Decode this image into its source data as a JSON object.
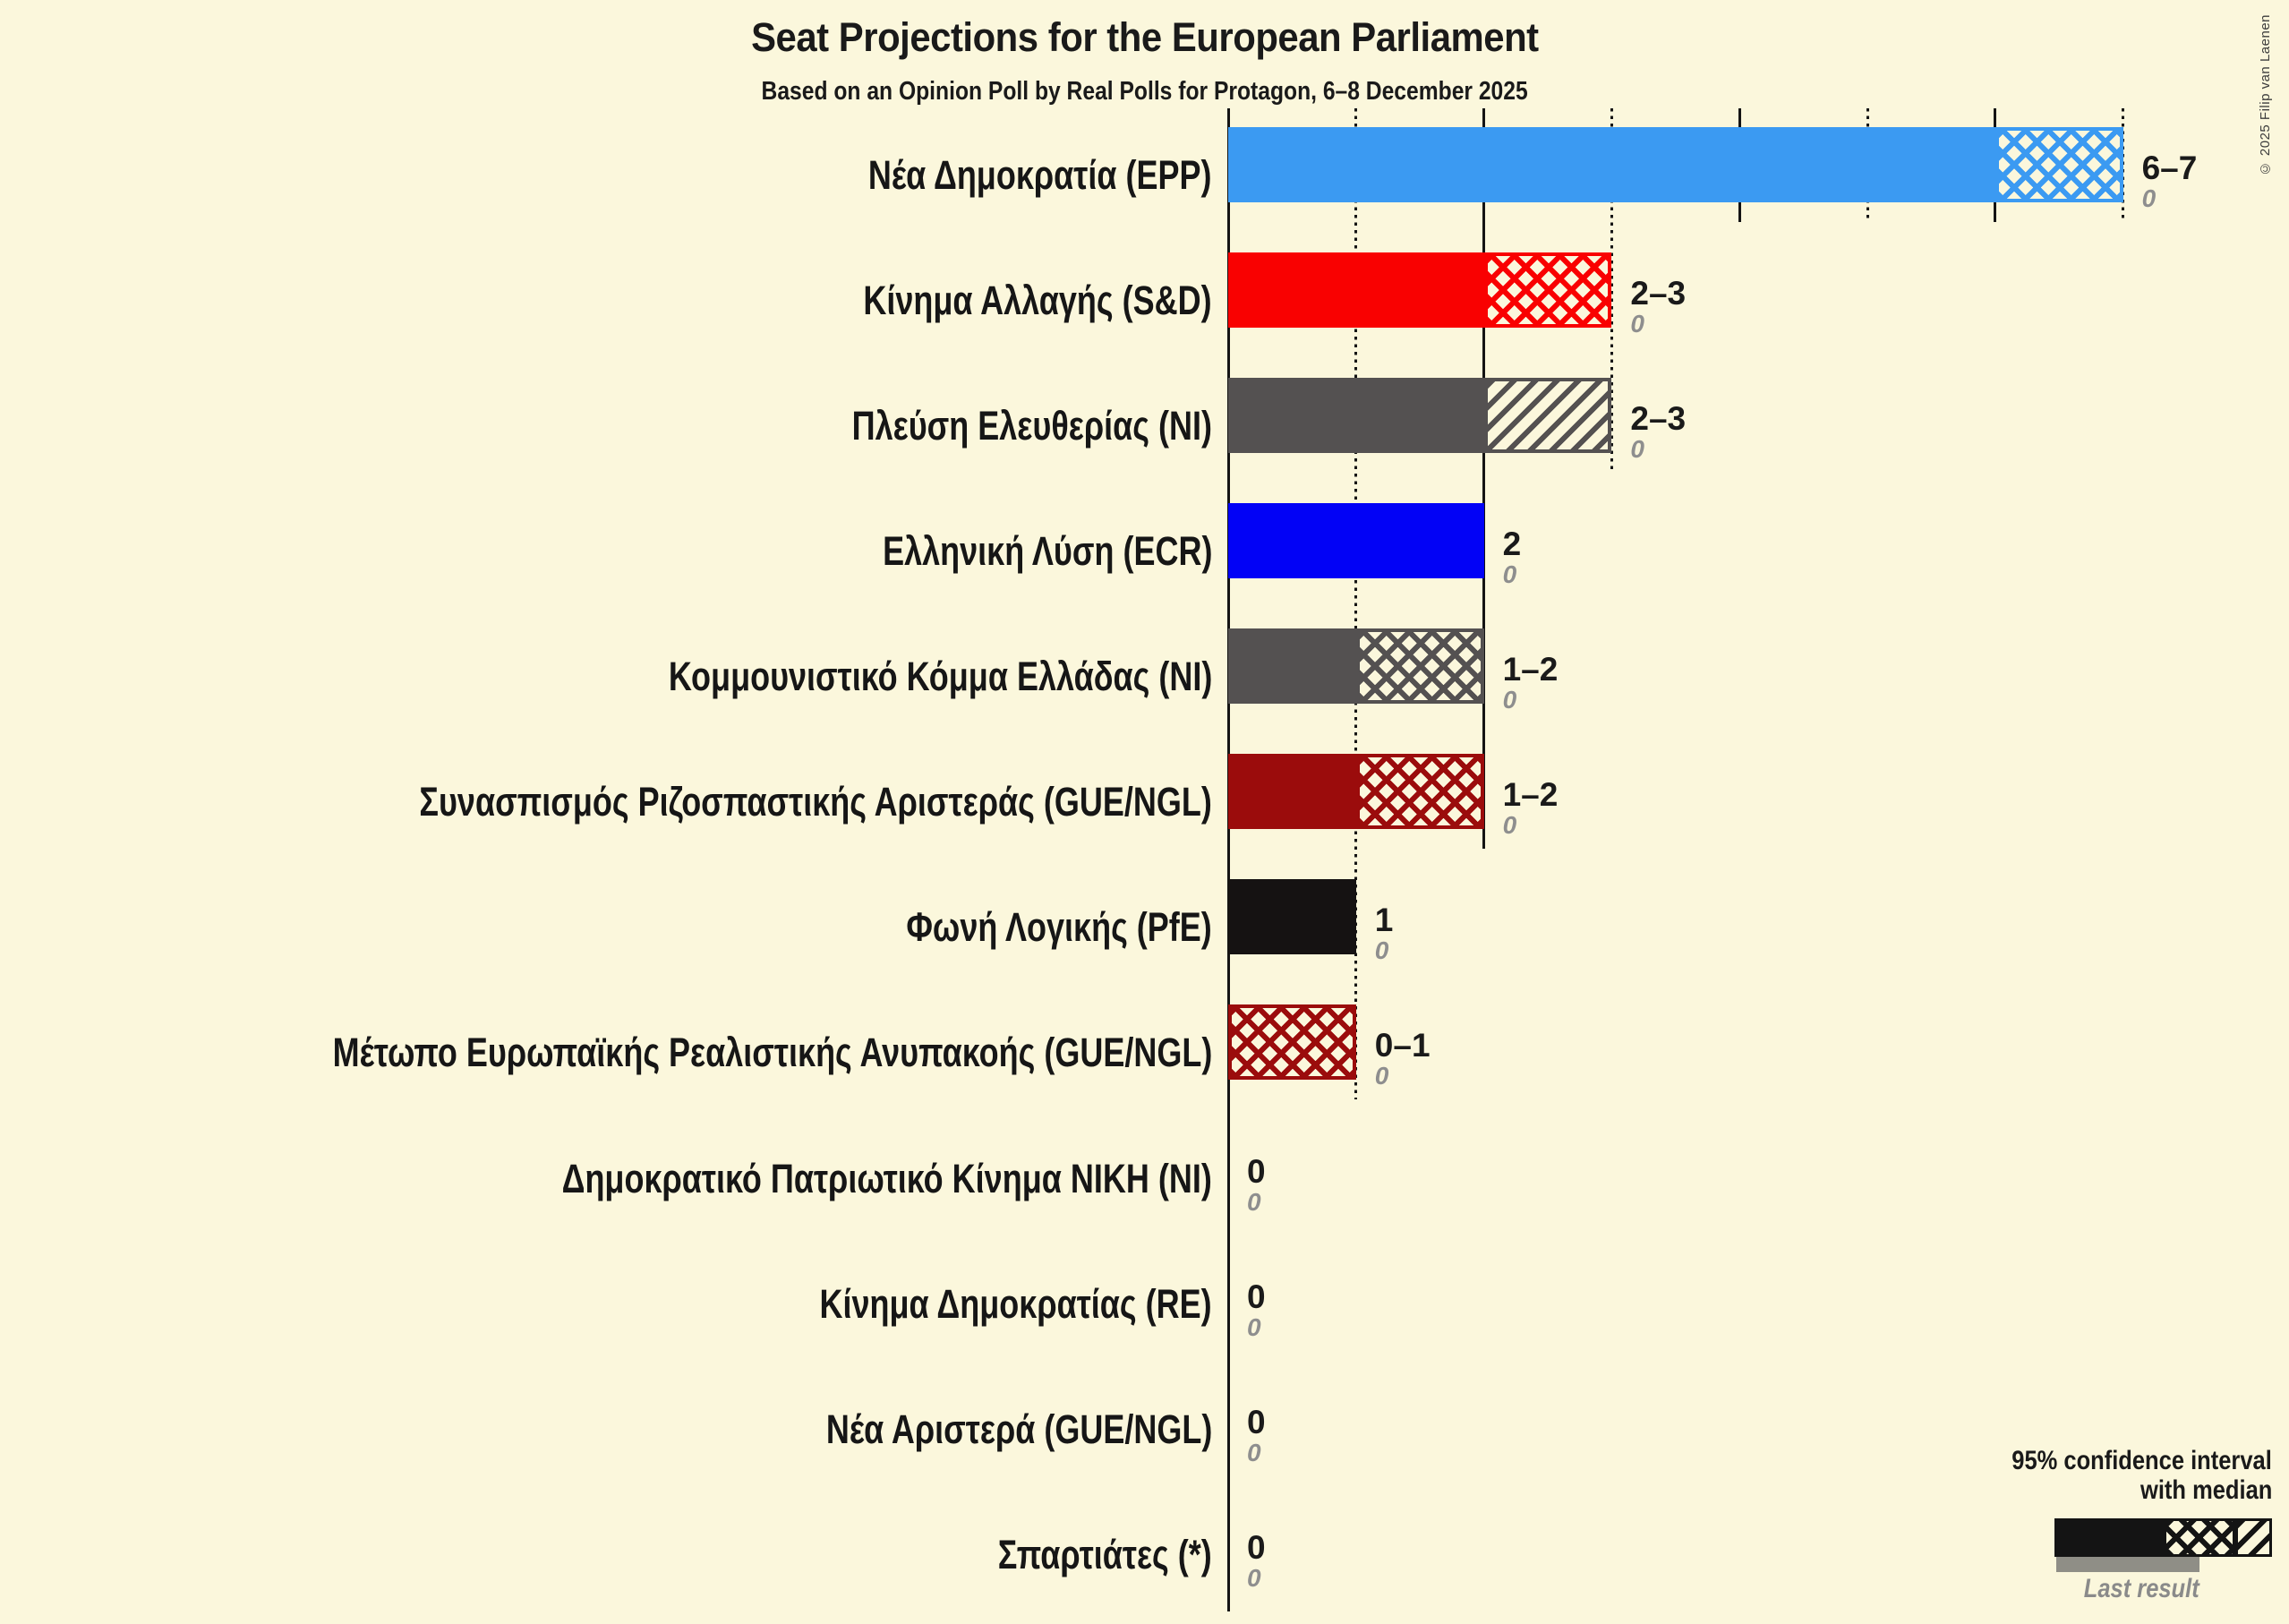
{
  "page": {
    "background_color": "#FBF7DC",
    "copyright": "© 2025 Filip van Laenen"
  },
  "chart_data": {
    "type": "bar",
    "orientation": "horizontal",
    "title": "Seat Projections for the European Parliament",
    "subtitle": "Based on an Opinion Poll by Real Polls for Protagon, 6–8 December 2025",
    "x_axis": {
      "min": 0,
      "max": 7,
      "tick_step": 1,
      "solid_gridlines_at": [
        0,
        2,
        4,
        6
      ],
      "dotted_gridlines_at": [
        1,
        3,
        5,
        7
      ]
    },
    "legend": {
      "ci_line1": "95% confidence interval",
      "ci_line2": "with median",
      "last_result_label": "Last result",
      "sample_color": "#141414",
      "last_result_bar_color": "#8F8E86"
    },
    "encoding_note": "solid = 0 to CI low, crosshatch = CI low to median, diagonal hatch = median to CI high",
    "parties": [
      {
        "label": "Νέα Δημοκρατία (EPP)",
        "color": "#3B9AF2",
        "ci_low": 6,
        "median": 7,
        "ci_high": 7,
        "value_label": "6–7",
        "last_result": "0"
      },
      {
        "label": "Κίνημα Αλλαγής (S&D)",
        "color": "#F90101",
        "ci_low": 2,
        "median": 3,
        "ci_high": 3,
        "value_label": "2–3",
        "last_result": "0"
      },
      {
        "label": "Πλεύση Ελευθερίας (NI)",
        "color": "#545151",
        "ci_low": 2,
        "median": 2,
        "ci_high": 3,
        "value_label": "2–3",
        "last_result": "0"
      },
      {
        "label": "Ελληνική Λύση (ECR)",
        "color": "#0202F6",
        "ci_low": 2,
        "median": 2,
        "ci_high": 2,
        "value_label": "2",
        "last_result": "0"
      },
      {
        "label": "Κομμουνιστικό Κόμμα Ελλάδας (NI)",
        "color": "#545151",
        "ci_low": 1,
        "median": 2,
        "ci_high": 2,
        "value_label": "1–2",
        "last_result": "0"
      },
      {
        "label": "Συνασπισμός Ριζοσπαστικής Αριστεράς (GUE/NGL)",
        "color": "#9B0C0C",
        "ci_low": 1,
        "median": 2,
        "ci_high": 2,
        "value_label": "1–2",
        "last_result": "0"
      },
      {
        "label": "Φωνή Λογικής (PfE)",
        "color": "#151212",
        "ci_low": 1,
        "median": 1,
        "ci_high": 1,
        "value_label": "1",
        "last_result": "0"
      },
      {
        "label": "Μέτωπο Ευρωπαϊκής Ρεαλιστικής Ανυπακοής (GUE/NGL)",
        "color": "#9B0C0C",
        "ci_low": 0,
        "median": 1,
        "ci_high": 1,
        "value_label": "0–1",
        "last_result": "0"
      },
      {
        "label": "Δημοκρατικό Πατριωτικό Κίνημα ΝΙΚΗ (NI)",
        "color": "#545151",
        "ci_low": 0,
        "median": 0,
        "ci_high": 0,
        "value_label": "0",
        "last_result": "0"
      },
      {
        "label": "Κίνημα Δημοκρατίας (RE)",
        "color": "#545151",
        "ci_low": 0,
        "median": 0,
        "ci_high": 0,
        "value_label": "0",
        "last_result": "0"
      },
      {
        "label": "Νέα Αριστερά (GUE/NGL)",
        "color": "#9B0C0C",
        "ci_low": 0,
        "median": 0,
        "ci_high": 0,
        "value_label": "0",
        "last_result": "0"
      },
      {
        "label": "Σπαρτιάτες (*)",
        "color": "#545151",
        "ci_low": 0,
        "median": 0,
        "ci_high": 0,
        "value_label": "0",
        "last_result": "0"
      }
    ]
  }
}
